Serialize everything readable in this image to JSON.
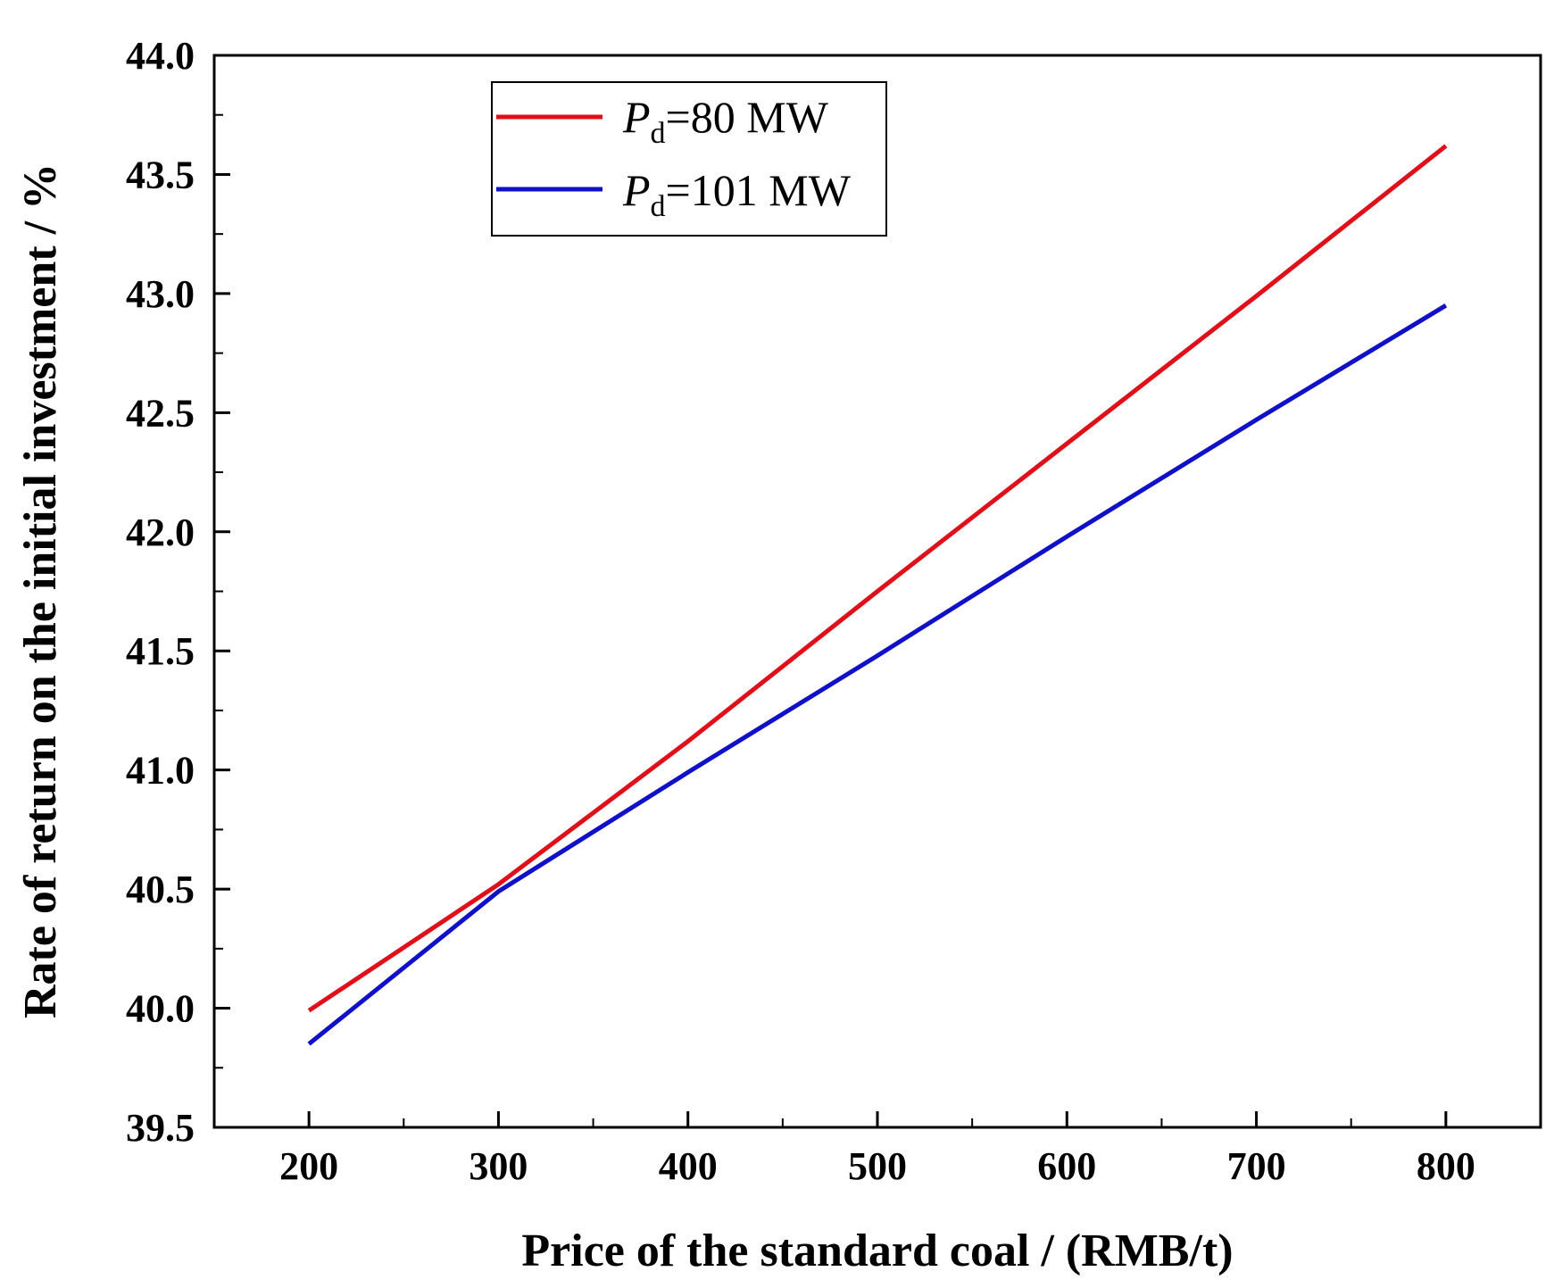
{
  "chart_data": {
    "type": "line",
    "title": "",
    "xlabel": "Price of the standard coal / (RMB/t)",
    "ylabel": "Rate of return on the initial investment / %",
    "xlim": [
      150,
      850
    ],
    "ylim": [
      39.5,
      44.0
    ],
    "x_ticks": [
      200,
      300,
      400,
      500,
      600,
      700,
      800
    ],
    "x_tick_labels": [
      "200",
      "300",
      "400",
      "500",
      "600",
      "700",
      "800"
    ],
    "y_ticks": [
      39.5,
      40.0,
      40.5,
      41.0,
      41.5,
      42.0,
      42.5,
      43.0,
      43.5,
      44.0
    ],
    "y_tick_labels": [
      "39.5",
      "40.0",
      "40.5",
      "41.0",
      "41.5",
      "42.0",
      "42.5",
      "43.0",
      "43.5",
      "44.0"
    ],
    "grid": false,
    "legend_position": "top-left",
    "series": [
      {
        "name": "Pd=80 MW",
        "legend_main": "P",
        "legend_sub": "d",
        "legend_rest": "=80 MW",
        "color": "#e0101a",
        "x": [
          200,
          300,
          400,
          500,
          600,
          700,
          800
        ],
        "y": [
          39.99,
          40.52,
          41.12,
          41.75,
          42.37,
          42.99,
          43.62
        ]
      },
      {
        "name": "Pd=101 MW",
        "legend_main": "P",
        "legend_sub": "d",
        "legend_rest": "=101 MW",
        "color": "#1010c8",
        "x": [
          200,
          300,
          400,
          500,
          600,
          700,
          800
        ],
        "y": [
          39.85,
          40.49,
          40.99,
          41.48,
          41.98,
          42.47,
          42.95
        ]
      }
    ]
  }
}
